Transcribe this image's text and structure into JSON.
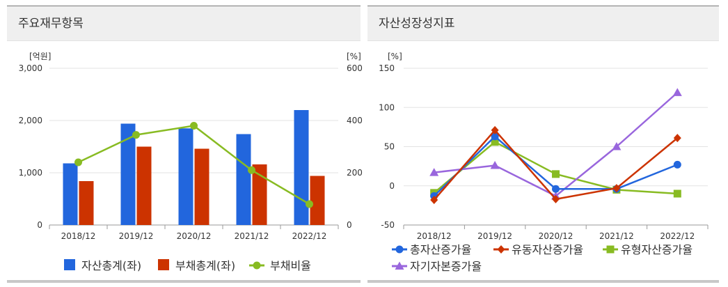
{
  "panels": {
    "left": {
      "title": "주요재무항목"
    },
    "right": {
      "title": "자산성장성지표"
    }
  },
  "chart_data": [
    {
      "type": "bar",
      "categories": [
        "2018/12",
        "2019/12",
        "2020/12",
        "2021/12",
        "2022/12"
      ],
      "y_left": {
        "label": "[억원]",
        "ticks": [
          "3,000",
          "2,000",
          "1,000",
          "0"
        ],
        "ylim": [
          0,
          3000
        ]
      },
      "y_right": {
        "label": "[%]",
        "ticks": [
          "600",
          "400",
          "200",
          "0"
        ],
        "ylim": [
          0,
          600
        ]
      },
      "series": [
        {
          "name": "자산총계(좌)",
          "type": "bar",
          "axis": "left",
          "color": "#2266dd",
          "values": [
            1180,
            1940,
            1850,
            1740,
            2200
          ]
        },
        {
          "name": "부채총계(좌)",
          "type": "bar",
          "axis": "left",
          "color": "#cc3300",
          "values": [
            840,
            1500,
            1460,
            1160,
            940
          ]
        },
        {
          "name": "부채비율",
          "type": "line",
          "axis": "right",
          "color": "#88bb22",
          "values": [
            240,
            345,
            380,
            210,
            80
          ]
        }
      ],
      "grid": true,
      "legend": "bottom"
    },
    {
      "type": "line",
      "categories": [
        "2018/12",
        "2019/12",
        "2020/12",
        "2021/12",
        "2022/12"
      ],
      "y": {
        "label": "[%]",
        "ticks": [
          "150",
          "100",
          "50",
          "0",
          "-50"
        ],
        "ylim": [
          -50,
          150
        ]
      },
      "series": [
        {
          "name": "총자산증가율",
          "marker": "circle",
          "color": "#2266dd",
          "values": [
            -13,
            63,
            -4,
            -4,
            27
          ]
        },
        {
          "name": "유동자산증가율",
          "marker": "diamond",
          "color": "#cc3300",
          "values": [
            -18,
            71,
            -17,
            -3,
            61
          ]
        },
        {
          "name": "유형자산증가율",
          "marker": "square",
          "color": "#88bb22",
          "values": [
            -9,
            56,
            15,
            -5,
            -10
          ]
        },
        {
          "name": "자기자본증가율",
          "marker": "triangle",
          "color": "#9966dd",
          "values": [
            17,
            26,
            -13,
            50,
            119
          ]
        }
      ],
      "grid": true,
      "legend": "bottom"
    }
  ]
}
